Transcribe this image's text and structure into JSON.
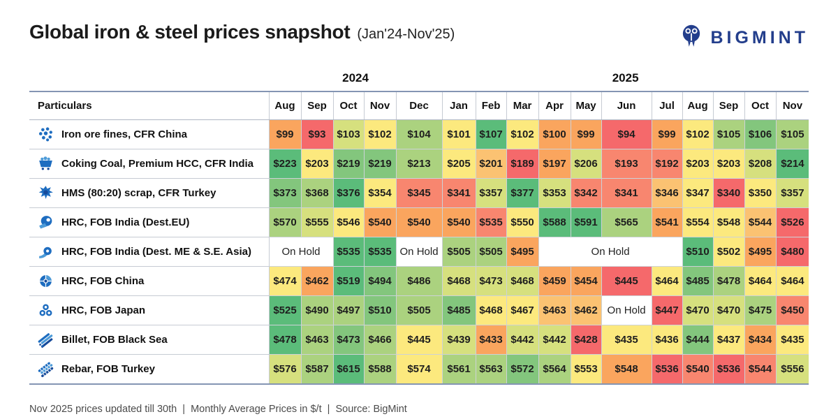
{
  "header": {
    "title": "Global iron & steel prices snapshot",
    "subtitle": "(Jan'24-Nov'25)",
    "brand": "BIGMINT"
  },
  "table": {
    "particulars_label": "Particulars",
    "year_groups": [
      {
        "label": "2024",
        "span": 5
      },
      {
        "label": "2025",
        "span": 11
      }
    ],
    "months": [
      "Aug",
      "Sep",
      "Oct",
      "Nov",
      "Dec",
      "Jan",
      "Feb",
      "Mar",
      "Apr",
      "May",
      "Jun",
      "Jul",
      "Aug",
      "Sep",
      "Oct",
      "Nov"
    ],
    "on_hold_label": "On Hold",
    "palette": {
      "r": "#F5696B",
      "s": "#F8866F",
      "o": "#FAA55E",
      "yo": "#FBC272",
      "y": "#FCE97E",
      "yg": "#D6E07E",
      "lg": "#ABD27F",
      "mg": "#83C67D",
      "g": "#5BBC7A",
      "w": "#FFFFFF"
    },
    "rows": [
      {
        "name": "Iron ore fines, CFR China",
        "icon": "ore-pellets-icon",
        "cells": [
          {
            "v": "$99",
            "c": "o"
          },
          {
            "v": "$93",
            "c": "r"
          },
          {
            "v": "$103",
            "c": "yg"
          },
          {
            "v": "$102",
            "c": "y"
          },
          {
            "v": "$104",
            "c": "lg"
          },
          {
            "v": "$101",
            "c": "y"
          },
          {
            "v": "$107",
            "c": "g"
          },
          {
            "v": "$102",
            "c": "y"
          },
          {
            "v": "$100",
            "c": "o"
          },
          {
            "v": "$99",
            "c": "o"
          },
          {
            "v": "$94",
            "c": "r"
          },
          {
            "v": "$99",
            "c": "o"
          },
          {
            "v": "$102",
            "c": "y"
          },
          {
            "v": "$105",
            "c": "lg"
          },
          {
            "v": "$106",
            "c": "mg"
          },
          {
            "v": "$105",
            "c": "lg"
          }
        ]
      },
      {
        "name": "Coking Coal, Premium HCC, CFR India",
        "icon": "mine-cart-icon",
        "cells": [
          {
            "v": "$223",
            "c": "g"
          },
          {
            "v": "$203",
            "c": "y"
          },
          {
            "v": "$219",
            "c": "mg"
          },
          {
            "v": "$219",
            "c": "mg"
          },
          {
            "v": "$213",
            "c": "lg"
          },
          {
            "v": "$205",
            "c": "y"
          },
          {
            "v": "$201",
            "c": "yo"
          },
          {
            "v": "$189",
            "c": "r"
          },
          {
            "v": "$197",
            "c": "o"
          },
          {
            "v": "$206",
            "c": "yg"
          },
          {
            "v": "$193",
            "c": "s"
          },
          {
            "v": "$192",
            "c": "s"
          },
          {
            "v": "$203",
            "c": "y"
          },
          {
            "v": "$203",
            "c": "y"
          },
          {
            "v": "$208",
            "c": "yg"
          },
          {
            "v": "$214",
            "c": "g"
          }
        ]
      },
      {
        "name": "HMS (80:20) scrap, CFR Turkey",
        "icon": "scrap-metal-icon",
        "cells": [
          {
            "v": "$373",
            "c": "mg"
          },
          {
            "v": "$368",
            "c": "lg"
          },
          {
            "v": "$376",
            "c": "g"
          },
          {
            "v": "$354",
            "c": "y"
          },
          {
            "v": "$345",
            "c": "s"
          },
          {
            "v": "$341",
            "c": "s"
          },
          {
            "v": "$357",
            "c": "yg"
          },
          {
            "v": "$377",
            "c": "g"
          },
          {
            "v": "$353",
            "c": "yg"
          },
          {
            "v": "$342",
            "c": "s"
          },
          {
            "v": "$341",
            "c": "s"
          },
          {
            "v": "$346",
            "c": "yo"
          },
          {
            "v": "$347",
            "c": "y"
          },
          {
            "v": "$340",
            "c": "r"
          },
          {
            "v": "$350",
            "c": "y"
          },
          {
            "v": "$357",
            "c": "yg"
          }
        ]
      },
      {
        "name": "HRC, FOB India (Dest.EU)",
        "icon": "steel-coil-icon",
        "cells": [
          {
            "v": "$570",
            "c": "lg"
          },
          {
            "v": "$555",
            "c": "yg"
          },
          {
            "v": "$546",
            "c": "y"
          },
          {
            "v": "$540",
            "c": "o"
          },
          {
            "v": "$540",
            "c": "o"
          },
          {
            "v": "$540",
            "c": "o"
          },
          {
            "v": "$535",
            "c": "s"
          },
          {
            "v": "$550",
            "c": "y"
          },
          {
            "v": "$588",
            "c": "g"
          },
          {
            "v": "$591",
            "c": "g"
          },
          {
            "v": "$565",
            "c": "lg"
          },
          {
            "v": "$541",
            "c": "o"
          },
          {
            "v": "$554",
            "c": "y"
          },
          {
            "v": "$548",
            "c": "y"
          },
          {
            "v": "$544",
            "c": "yo"
          },
          {
            "v": "$526",
            "c": "r"
          }
        ]
      },
      {
        "name": "HRC, FOB India (Dest. ME & S.E. Asia)",
        "icon": "coil-unroll-icon",
        "cells": [
          {
            "v": "On Hold",
            "c": "w",
            "s": 2
          },
          {
            "v": "$535",
            "c": "g"
          },
          {
            "v": "$535",
            "c": "g"
          },
          {
            "v": "On Hold",
            "c": "w"
          },
          {
            "v": "$505",
            "c": "lg"
          },
          {
            "v": "$505",
            "c": "lg"
          },
          {
            "v": "$495",
            "c": "o"
          },
          {
            "v": "On Hold",
            "c": "w",
            "s": 4
          },
          {
            "v": "$510",
            "c": "g"
          },
          {
            "v": "$502",
            "c": "y"
          },
          {
            "v": "$495",
            "c": "o"
          },
          {
            "v": "$480",
            "c": "r"
          }
        ]
      },
      {
        "name": "HRC, FOB China",
        "icon": "coil-front-icon",
        "cells": [
          {
            "v": "$474",
            "c": "y"
          },
          {
            "v": "$462",
            "c": "o"
          },
          {
            "v": "$519",
            "c": "g"
          },
          {
            "v": "$494",
            "c": "mg"
          },
          {
            "v": "$486",
            "c": "lg"
          },
          {
            "v": "$468",
            "c": "yg"
          },
          {
            "v": "$473",
            "c": "yg"
          },
          {
            "v": "$468",
            "c": "yg"
          },
          {
            "v": "$459",
            "c": "o"
          },
          {
            "v": "$454",
            "c": "o"
          },
          {
            "v": "$445",
            "c": "r"
          },
          {
            "v": "$464",
            "c": "y"
          },
          {
            "v": "$485",
            "c": "mg"
          },
          {
            "v": "$478",
            "c": "lg"
          },
          {
            "v": "$464",
            "c": "y"
          },
          {
            "v": "$464",
            "c": "y"
          }
        ]
      },
      {
        "name": "HRC, FOB Japan",
        "icon": "coil-stack-icon",
        "cells": [
          {
            "v": "$525",
            "c": "g"
          },
          {
            "v": "$490",
            "c": "lg"
          },
          {
            "v": "$497",
            "c": "lg"
          },
          {
            "v": "$510",
            "c": "mg"
          },
          {
            "v": "$505",
            "c": "lg"
          },
          {
            "v": "$485",
            "c": "mg"
          },
          {
            "v": "$468",
            "c": "y"
          },
          {
            "v": "$467",
            "c": "y"
          },
          {
            "v": "$463",
            "c": "yo"
          },
          {
            "v": "$462",
            "c": "yo"
          },
          {
            "v": "On Hold",
            "c": "w"
          },
          {
            "v": "$447",
            "c": "r"
          },
          {
            "v": "$470",
            "c": "yg"
          },
          {
            "v": "$470",
            "c": "yg"
          },
          {
            "v": "$475",
            "c": "lg"
          },
          {
            "v": "$450",
            "c": "s"
          }
        ]
      },
      {
        "name": "Billet, FOB Black Sea",
        "icon": "billet-bars-icon",
        "cells": [
          {
            "v": "$478",
            "c": "g"
          },
          {
            "v": "$463",
            "c": "lg"
          },
          {
            "v": "$473",
            "c": "mg"
          },
          {
            "v": "$466",
            "c": "lg"
          },
          {
            "v": "$445",
            "c": "y"
          },
          {
            "v": "$439",
            "c": "yg"
          },
          {
            "v": "$433",
            "c": "o"
          },
          {
            "v": "$442",
            "c": "yg"
          },
          {
            "v": "$442",
            "c": "yg"
          },
          {
            "v": "$428",
            "c": "r"
          },
          {
            "v": "$435",
            "c": "y"
          },
          {
            "v": "$436",
            "c": "y"
          },
          {
            "v": "$444",
            "c": "mg"
          },
          {
            "v": "$437",
            "c": "y"
          },
          {
            "v": "$434",
            "c": "o"
          },
          {
            "v": "$435",
            "c": "y"
          }
        ]
      },
      {
        "name": "Rebar, FOB Turkey",
        "icon": "rebar-bars-icon",
        "cells": [
          {
            "v": "$576",
            "c": "yg"
          },
          {
            "v": "$587",
            "c": "lg"
          },
          {
            "v": "$615",
            "c": "g"
          },
          {
            "v": "$588",
            "c": "lg"
          },
          {
            "v": "$574",
            "c": "y"
          },
          {
            "v": "$561",
            "c": "lg"
          },
          {
            "v": "$563",
            "c": "lg"
          },
          {
            "v": "$572",
            "c": "mg"
          },
          {
            "v": "$564",
            "c": "lg"
          },
          {
            "v": "$553",
            "c": "y"
          },
          {
            "v": "$548",
            "c": "o"
          },
          {
            "v": "$536",
            "c": "r"
          },
          {
            "v": "$540",
            "c": "s"
          },
          {
            "v": "$536",
            "c": "r"
          },
          {
            "v": "$544",
            "c": "s"
          },
          {
            "v": "$556",
            "c": "yg"
          }
        ]
      }
    ]
  },
  "footer": {
    "note": "Nov 2025 prices updated till 30th  |  Monthly Average Prices in $/t  |  Source: BigMint"
  },
  "chart_data": {
    "type": "heatmap",
    "title": "Global iron & steel prices snapshot (Jan'24-Nov'25)",
    "unit": "$/t",
    "note": "Nov 2025 prices updated till 30th; Monthly Average Prices in $/t; Source: BigMint; null = On Hold",
    "columns": [
      "Aug'24",
      "Sep'24",
      "Oct'24",
      "Nov'24",
      "Dec'24",
      "Jan'25",
      "Feb'25",
      "Mar'25",
      "Apr'25",
      "May'25",
      "Jun'25",
      "Jul'25",
      "Aug'25",
      "Sep'25",
      "Oct'25",
      "Nov'25"
    ],
    "series": [
      {
        "name": "Iron ore fines, CFR China",
        "values": [
          99,
          93,
          103,
          102,
          104,
          101,
          107,
          102,
          100,
          99,
          94,
          99,
          102,
          105,
          106,
          105
        ]
      },
      {
        "name": "Coking Coal, Premium HCC, CFR India",
        "values": [
          223,
          203,
          219,
          219,
          213,
          205,
          201,
          189,
          197,
          206,
          193,
          192,
          203,
          203,
          208,
          214
        ]
      },
      {
        "name": "HMS (80:20) scrap, CFR Turkey",
        "values": [
          373,
          368,
          376,
          354,
          345,
          341,
          357,
          377,
          353,
          342,
          341,
          346,
          347,
          340,
          350,
          357
        ]
      },
      {
        "name": "HRC, FOB India (Dest.EU)",
        "values": [
          570,
          555,
          546,
          540,
          540,
          540,
          535,
          550,
          588,
          591,
          565,
          541,
          554,
          548,
          544,
          526
        ]
      },
      {
        "name": "HRC, FOB India (Dest. ME & S.E. Asia)",
        "values": [
          null,
          null,
          535,
          535,
          null,
          505,
          505,
          495,
          null,
          null,
          null,
          null,
          510,
          502,
          495,
          480
        ]
      },
      {
        "name": "HRC, FOB China",
        "values": [
          474,
          462,
          519,
          494,
          486,
          468,
          473,
          468,
          459,
          454,
          445,
          464,
          485,
          478,
          464,
          464
        ]
      },
      {
        "name": "HRC, FOB Japan",
        "values": [
          525,
          490,
          497,
          510,
          505,
          485,
          468,
          467,
          463,
          462,
          null,
          447,
          470,
          470,
          475,
          450
        ]
      },
      {
        "name": "Billet, FOB Black Sea",
        "values": [
          478,
          463,
          473,
          466,
          445,
          439,
          433,
          442,
          442,
          428,
          435,
          436,
          444,
          437,
          434,
          435
        ]
      },
      {
        "name": "Rebar, FOB Turkey",
        "values": [
          576,
          587,
          615,
          588,
          574,
          561,
          563,
          572,
          564,
          553,
          548,
          536,
          540,
          536,
          544,
          556
        ]
      }
    ],
    "color_scale": {
      "low": "#F5696B",
      "mid": "#FCE97E",
      "high": "#5BBC7A",
      "normalization": "per-row"
    }
  }
}
